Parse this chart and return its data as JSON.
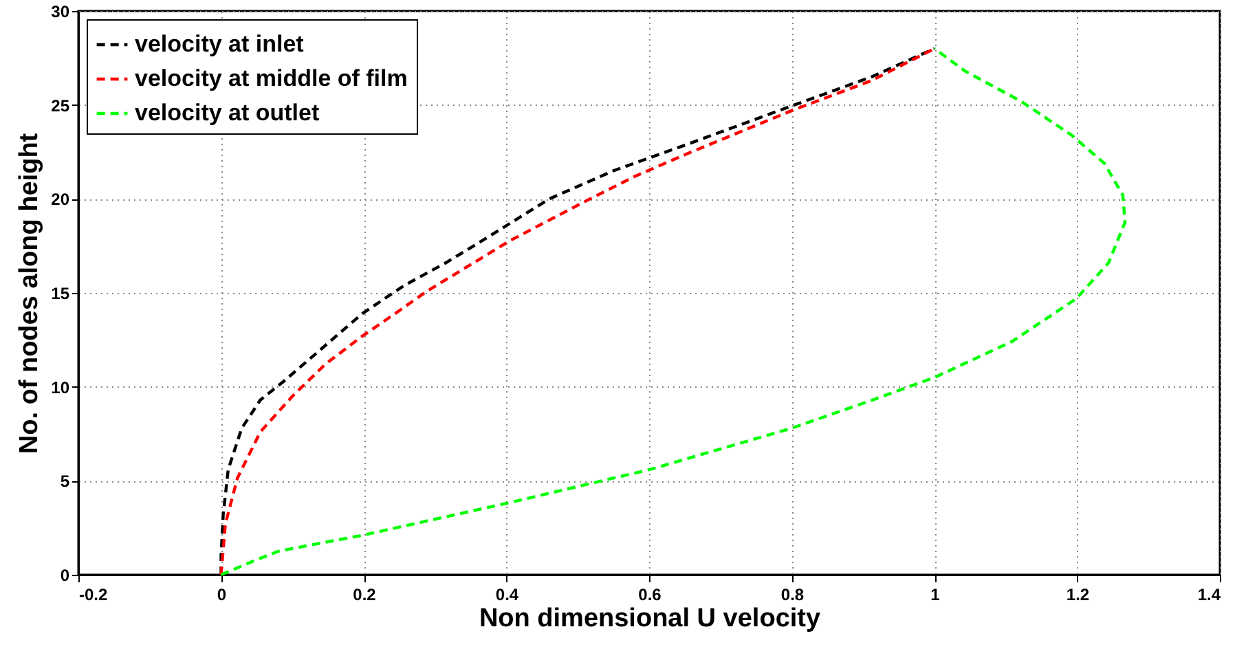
{
  "chart_data": {
    "type": "line",
    "xlabel": "Non dimensional U velocity",
    "ylabel": "No. of nodes along height",
    "xlim": [
      -0.2,
      1.4
    ],
    "xticks": [
      -0.2,
      0,
      0.2,
      0.4,
      0.6,
      0.8,
      1,
      1.2,
      1.4
    ],
    "ylim": [
      0,
      30
    ],
    "yticks": [
      0,
      5,
      10,
      15,
      20,
      25,
      30
    ],
    "grid": true,
    "legend": "top left",
    "line_style": "dashed",
    "marker": "none",
    "series": [
      {
        "name": "velocity at inlet",
        "color": "#000000",
        "x": [
          0,
          0,
          0.003,
          0.01,
          0.029,
          0.055,
          0.088,
          0.14,
          0.198,
          0.257,
          0.315,
          0.367,
          0.46,
          0.55,
          0.653,
          0.8,
          0.912,
          1
        ],
        "values": [
          0,
          1,
          3.2,
          5.6,
          7.8,
          9.3,
          10.3,
          12,
          13.9,
          15.4,
          16.6,
          17.8,
          20,
          21.5,
          22.9,
          24.95,
          26.5,
          28
        ]
      },
      {
        "name": "velocity at middle of film",
        "color": "#ff0000",
        "x": [
          0,
          0.006,
          0.023,
          0.055,
          0.1,
          0.146,
          0.198,
          0.244,
          0.289,
          0.341,
          0.406,
          0.517,
          0.58,
          0.653,
          0.8,
          0.912,
          1
        ],
        "values": [
          0,
          2.7,
          5.15,
          7.6,
          9.5,
          11.2,
          12.7,
          13.9,
          15.1,
          16.3,
          17.8,
          20,
          21.2,
          22.4,
          24.7,
          26.3,
          28
        ]
      },
      {
        "name": "velocity at outlet",
        "color": "#00ff00",
        "x": [
          0,
          0.05,
          0.081,
          0.198,
          0.4,
          0.601,
          0.8,
          0.913,
          1,
          1.108,
          1.199,
          1.244,
          1.267,
          1.264,
          1.238,
          1.192,
          1.121,
          1.043,
          1
        ],
        "values": [
          0,
          0.8,
          1.26,
          2.1,
          3.8,
          5.6,
          7.8,
          9.3,
          10.5,
          12.4,
          14.7,
          16.6,
          18.75,
          20.2,
          21.9,
          23.4,
          25.2,
          26.8,
          28
        ]
      }
    ]
  }
}
